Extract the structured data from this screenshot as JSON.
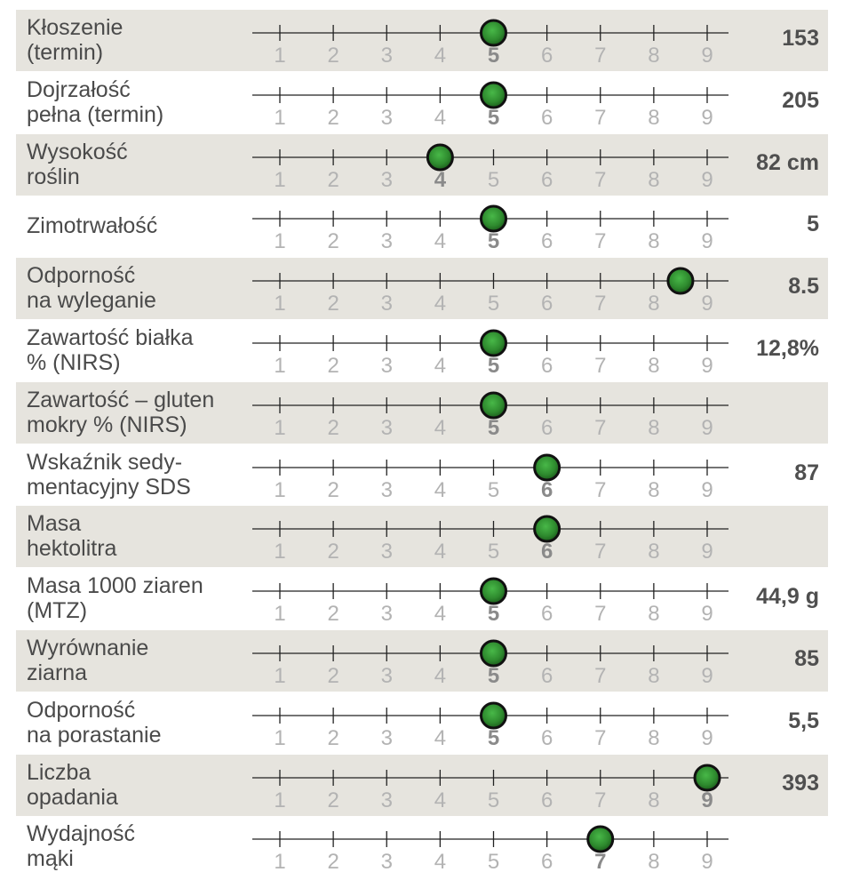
{
  "chart_data": {
    "type": "scatter",
    "title": "",
    "xlabel": "",
    "ylabel": "",
    "xlim": [
      1,
      9
    ],
    "ticks": [
      "1",
      "2",
      "3",
      "4",
      "5",
      "6",
      "7",
      "8",
      "9"
    ],
    "colors": {
      "marker": "#2e8a2e",
      "marker_outline": "#111111",
      "row_shade": "#e6e4de"
    },
    "rows": [
      {
        "label": "Kłoszenie\n(termin)",
        "score": 5,
        "selected": "5",
        "value": "153"
      },
      {
        "label": "Dojrzałość\npełna (termin)",
        "score": 5,
        "selected": "5",
        "value": "205"
      },
      {
        "label": "Wysokość\nroślin",
        "score": 4,
        "selected": "4",
        "value": "82 cm"
      },
      {
        "label": "Zimotrwałość",
        "score": 5,
        "selected": "5",
        "value": "5"
      },
      {
        "label": "Odporność\nna wyleganie",
        "score": 8.5,
        "selected": "",
        "value": "8.5"
      },
      {
        "label": "Zawartość białka\n% (NIRS)",
        "score": 5,
        "selected": "5",
        "value": "12,8%"
      },
      {
        "label": "Zawartość – gluten\nmokry % (NIRS)",
        "score": 5,
        "selected": "5",
        "value": ""
      },
      {
        "label": "Wskaźnik sedy-\nmentacyjny SDS",
        "score": 6,
        "selected": "6",
        "value": "87"
      },
      {
        "label": "Masa\nhektolitra",
        "score": 6,
        "selected": "6",
        "value": ""
      },
      {
        "label": "Masa 1000 ziaren\n(MTZ)",
        "score": 5,
        "selected": "5",
        "value": "44,9 g"
      },
      {
        "label": "Wyrównanie\nziarna",
        "score": 5,
        "selected": "5",
        "value": "85"
      },
      {
        "label": "Odporność\nna porastanie",
        "score": 5,
        "selected": "5",
        "value": "5,5"
      },
      {
        "label": "Liczba\nopadania",
        "score": 9,
        "selected": "9",
        "value": "393"
      },
      {
        "label": "Wydajność\nmąki",
        "score": 7,
        "selected": "7",
        "value": ""
      }
    ]
  }
}
